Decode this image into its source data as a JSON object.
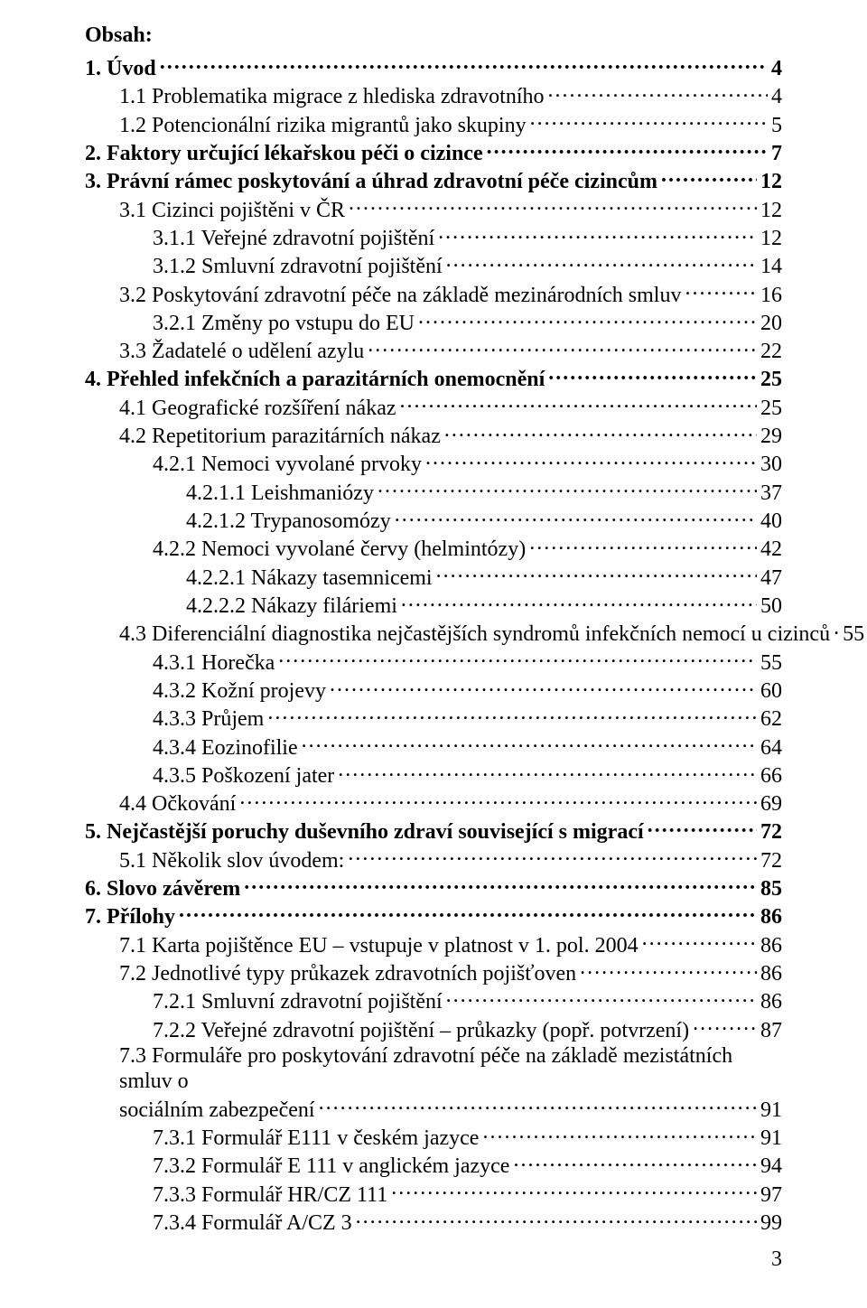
{
  "heading": "Obsah:",
  "page_number": "3",
  "fontsize_pt": 12,
  "text_color": "#000000",
  "background_color": "#ffffff",
  "toc": [
    {
      "level": 1,
      "label": "1.   Úvod",
      "page": "4"
    },
    {
      "level": 2,
      "label": "1.1 Problematika migrace z hlediska zdravotního",
      "page": "4"
    },
    {
      "level": 2,
      "label": "1.2 Potencionální rizika migrantů jako skupiny",
      "page": "5"
    },
    {
      "level": 1,
      "label": "2.   Faktory určující lékařskou péči o cizince",
      "page": "7"
    },
    {
      "level": 1,
      "label": "3.   Právní rámec poskytování a úhrad zdravotní péče cizincům",
      "page": "12"
    },
    {
      "level": 2,
      "label": "3.1 Cizinci pojištěni v ČR",
      "page": "12"
    },
    {
      "level": 3,
      "label": "3.1.1  Veřejné zdravotní pojištění",
      "page": "12"
    },
    {
      "level": 3,
      "label": "3.1.2  Smluvní zdravotní pojištění",
      "page": "14"
    },
    {
      "level": 2,
      "label": "3.2 Poskytování zdravotní péče na základě mezinárodních smluv",
      "page": "16"
    },
    {
      "level": 3,
      "label": "3.2.1  Změny po vstupu do EU",
      "page": "20"
    },
    {
      "level": 2,
      "label": "3.3 Žadatelé o udělení azylu",
      "page": "22"
    },
    {
      "level": 1,
      "label": "4.   Přehled infekčních a parazitárních onemocnění",
      "page": "25"
    },
    {
      "level": 2,
      "label": "4.1 Geografické rozšíření nákaz",
      "page": "25"
    },
    {
      "level": 2,
      "label": "4.2 Repetitorium parazitárních nákaz",
      "page": "29"
    },
    {
      "level": 3,
      "label": "4.2.1  Nemoci vyvolané prvoky",
      "page": "30"
    },
    {
      "level": 4,
      "label": "4.2.1.1   Leishmaniózy",
      "page": "37"
    },
    {
      "level": 4,
      "label": "4.2.1.2   Trypanosomózy",
      "page": "40"
    },
    {
      "level": 3,
      "label": "4.2.2  Nemoci vyvolané červy (helmintózy)",
      "page": "42"
    },
    {
      "level": 4,
      "label": "4.2.2.1   Nákazy tasemnicemi",
      "page": "47"
    },
    {
      "level": 4,
      "label": "4.2.2.2   Nákazy filáriemi",
      "page": "50"
    },
    {
      "level": 2,
      "label": "4.3 Diferenciální diagnostika nejčastějších syndromů infekčních nemocí  u cizinců",
      "page": "55",
      "no_leader": true
    },
    {
      "level": 3,
      "label": "4.3.1  Horečka",
      "page": "55"
    },
    {
      "level": 3,
      "label": "4.3.2  Kožní projevy",
      "page": "60"
    },
    {
      "level": 3,
      "label": "4.3.3  Průjem",
      "page": "62"
    },
    {
      "level": 3,
      "label": "4.3.4  Eozinofilie",
      "page": "64"
    },
    {
      "level": 3,
      "label": "4.3.5  Poškození jater",
      "page": "66"
    },
    {
      "level": 2,
      "label": "4.4 Očkování",
      "page": "69"
    },
    {
      "level": 1,
      "label": "5.   Nejčastější poruchy duševního zdraví související s migrací",
      "page": "72"
    },
    {
      "level": 2,
      "label": "5.1 Několik slov úvodem:",
      "page": "72"
    },
    {
      "level": 1,
      "label": "6.   Slovo závěrem",
      "page": "85"
    },
    {
      "level": 1,
      "label": "7.   Přílohy",
      "page": "86"
    },
    {
      "level": 2,
      "label": "7.1 Karta pojištěnce EU – vstupuje v platnost v 1. pol. 2004",
      "page": "86"
    },
    {
      "level": 2,
      "label": "7.2 Jednotlivé typy průkazek zdravotních pojišťoven",
      "page": "86"
    },
    {
      "level": 3,
      "label": "7.2.1  Smluvní zdravotní pojištění",
      "page": "86"
    },
    {
      "level": 3,
      "label": "7.2.2  Veřejné zdravotní pojištění – průkazky (popř. potvrzení)",
      "page": "87"
    },
    {
      "level": 2,
      "label": "7.3 Formuláře pro poskytování zdravotní péče na základě mezistátních smluv o sociálním zabezpečení",
      "page": "91",
      "wrap": true
    },
    {
      "level": 3,
      "label": "7.3.1  Formulář E111 v českém jazyce",
      "page": "91"
    },
    {
      "level": 3,
      "label": "7.3.2  Formulář E 111 v anglickém jazyce",
      "page": "94"
    },
    {
      "level": 3,
      "label": "7.3.3  Formulář HR/CZ 111",
      "page": "97"
    },
    {
      "level": 3,
      "label": "7.3.4  Formulář A/CZ 3",
      "page": "99"
    }
  ]
}
